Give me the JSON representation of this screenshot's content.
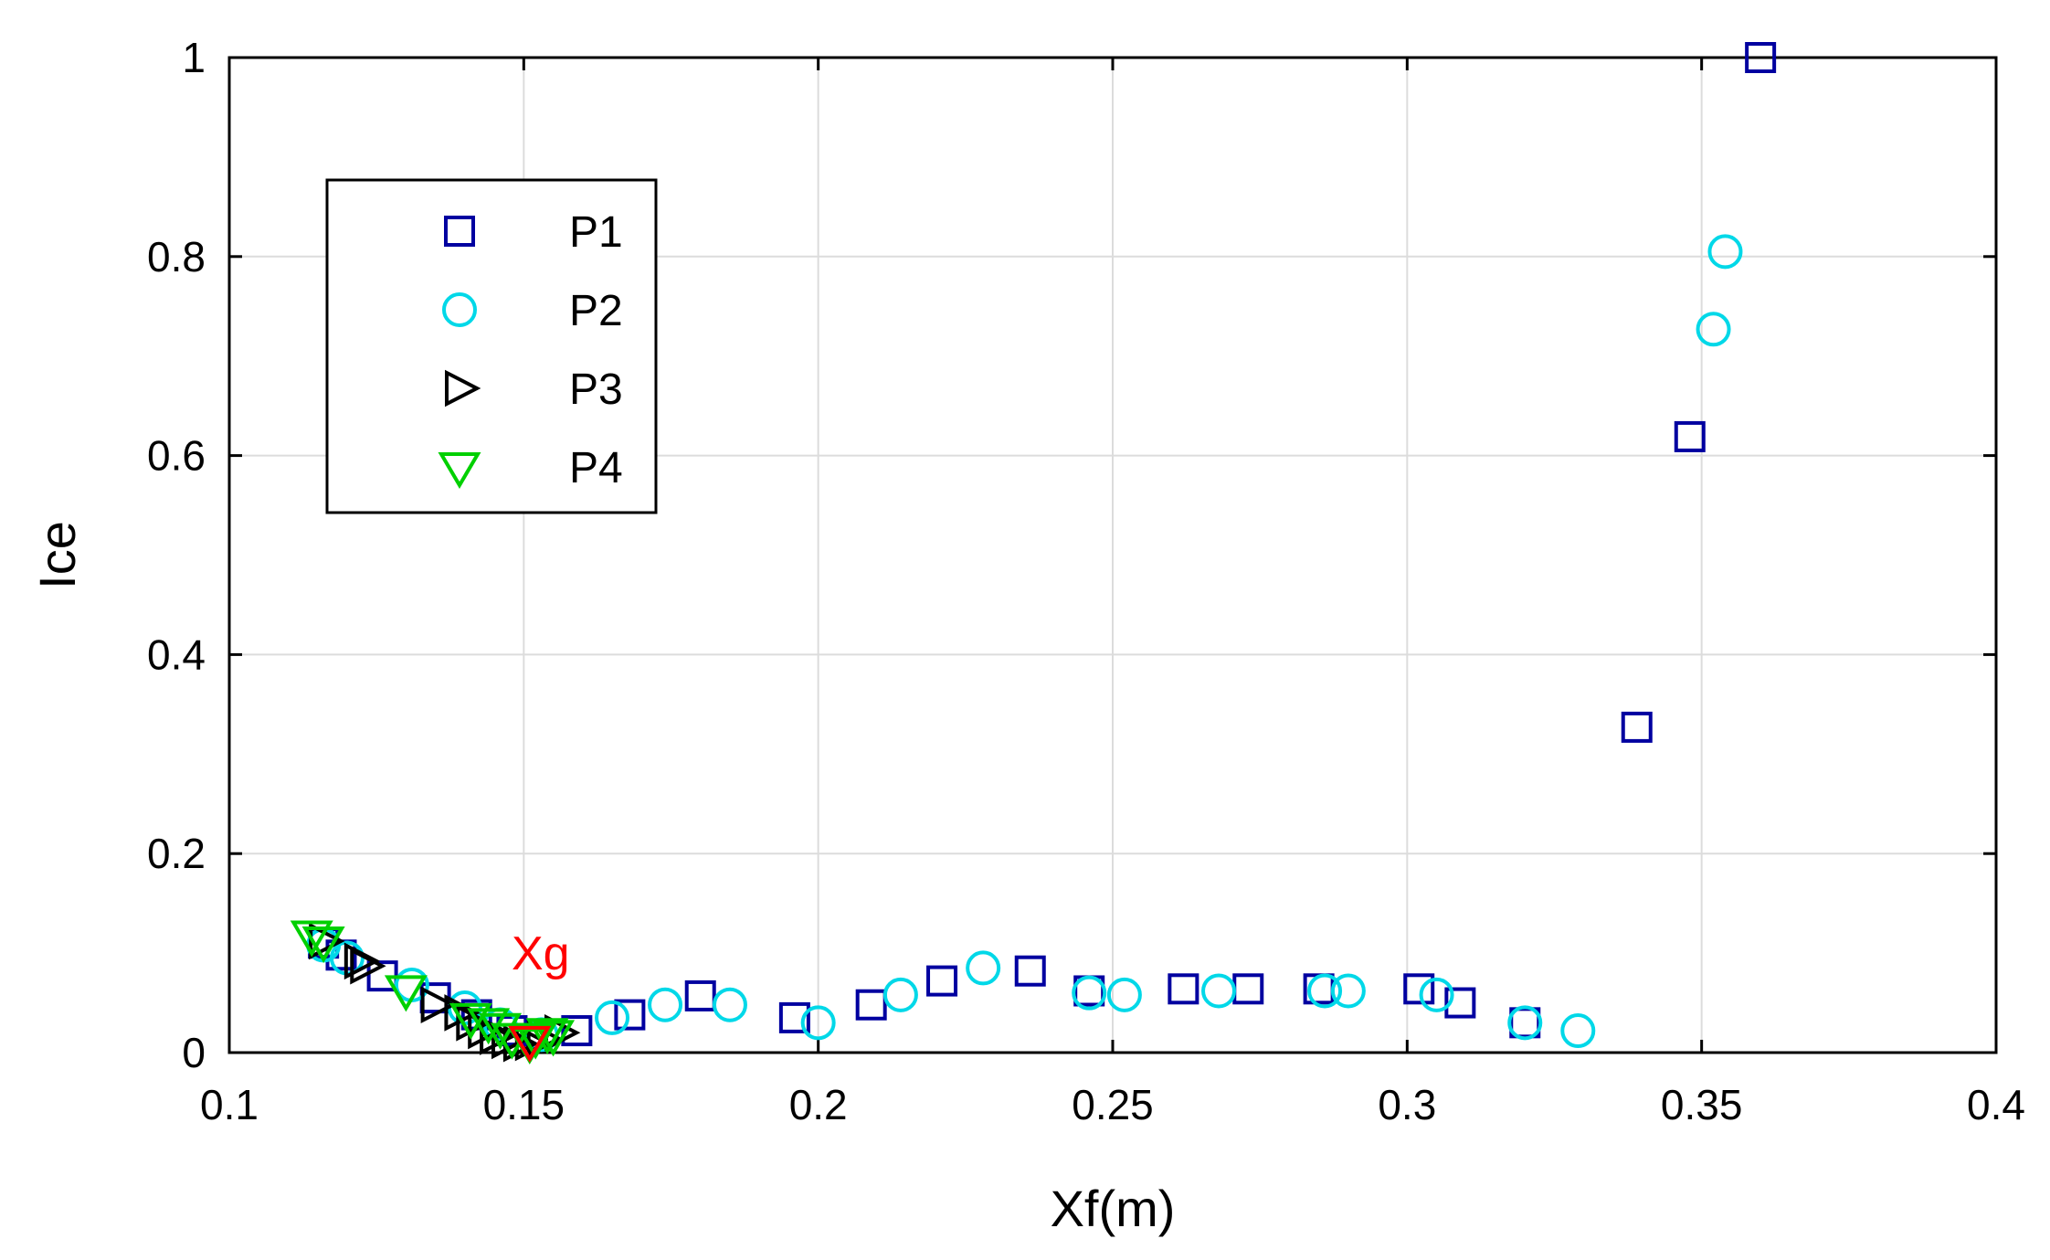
{
  "chart_data": {
    "type": "scatter",
    "xlabel": "Xf(m)",
    "ylabel": "Ice",
    "xlim": [
      0.1,
      0.4
    ],
    "ylim": [
      0,
      1
    ],
    "xticks": [
      0.1,
      0.15,
      0.2,
      0.25,
      0.3,
      0.35,
      0.4
    ],
    "yticks": [
      0,
      0.2,
      0.4,
      0.6,
      0.8,
      1
    ],
    "xtick_labels": [
      "0.1",
      "0.15",
      "0.2",
      "0.25",
      "0.3",
      "0.35",
      "0.4"
    ],
    "ytick_labels": [
      "0",
      "0.2",
      "0.4",
      "0.6",
      "0.8",
      "1"
    ],
    "grid": true,
    "legend_position": "upper-left",
    "series": [
      {
        "name": "P1",
        "marker": "square",
        "color": "#0000a0",
        "points": [
          [
            0.116,
            0.11
          ],
          [
            0.119,
            0.098
          ],
          [
            0.126,
            0.077
          ],
          [
            0.135,
            0.055
          ],
          [
            0.142,
            0.038
          ],
          [
            0.148,
            0.022
          ],
          [
            0.159,
            0.022
          ],
          [
            0.168,
            0.038
          ],
          [
            0.18,
            0.057
          ],
          [
            0.196,
            0.035
          ],
          [
            0.209,
            0.048
          ],
          [
            0.221,
            0.072
          ],
          [
            0.236,
            0.082
          ],
          [
            0.246,
            0.062
          ],
          [
            0.262,
            0.064
          ],
          [
            0.273,
            0.064
          ],
          [
            0.285,
            0.064
          ],
          [
            0.302,
            0.064
          ],
          [
            0.309,
            0.05
          ],
          [
            0.32,
            0.03
          ],
          [
            0.339,
            0.327
          ],
          [
            0.348,
            0.619
          ],
          [
            0.36,
            1.0
          ]
        ]
      },
      {
        "name": "P2",
        "marker": "circle",
        "color": "#00d8e8",
        "points": [
          [
            0.116,
            0.108
          ],
          [
            0.12,
            0.095
          ],
          [
            0.131,
            0.068
          ],
          [
            0.14,
            0.045
          ],
          [
            0.146,
            0.028
          ],
          [
            0.153,
            0.018
          ],
          [
            0.165,
            0.035
          ],
          [
            0.174,
            0.048
          ],
          [
            0.185,
            0.048
          ],
          [
            0.2,
            0.03
          ],
          [
            0.214,
            0.058
          ],
          [
            0.228,
            0.085
          ],
          [
            0.246,
            0.06
          ],
          [
            0.252,
            0.058
          ],
          [
            0.268,
            0.062
          ],
          [
            0.286,
            0.062
          ],
          [
            0.29,
            0.062
          ],
          [
            0.305,
            0.058
          ],
          [
            0.32,
            0.03
          ],
          [
            0.329,
            0.022
          ],
          [
            0.352,
            0.727
          ],
          [
            0.354,
            0.805
          ]
        ]
      },
      {
        "name": "P3",
        "marker": "triangle-right",
        "color": "#000000",
        "points": [
          [
            0.116,
            0.112
          ],
          [
            0.122,
            0.092
          ],
          [
            0.123,
            0.087
          ],
          [
            0.135,
            0.048
          ],
          [
            0.139,
            0.04
          ],
          [
            0.141,
            0.03
          ],
          [
            0.143,
            0.022
          ],
          [
            0.145,
            0.016
          ],
          [
            0.147,
            0.012
          ],
          [
            0.149,
            0.009
          ],
          [
            0.151,
            0.01
          ],
          [
            0.153,
            0.014
          ],
          [
            0.156,
            0.02
          ]
        ]
      },
      {
        "name": "P4",
        "marker": "triangle-down",
        "color": "#00d000",
        "points": [
          [
            0.114,
            0.118
          ],
          [
            0.116,
            0.112
          ],
          [
            0.13,
            0.063
          ],
          [
            0.141,
            0.035
          ],
          [
            0.144,
            0.03
          ],
          [
            0.146,
            0.025
          ],
          [
            0.148,
            0.015
          ],
          [
            0.151,
            0.01
          ],
          [
            0.152,
            0.015
          ],
          [
            0.154,
            0.02
          ],
          [
            0.155,
            0.018
          ]
        ]
      }
    ],
    "annotations": [
      {
        "text": "Xg",
        "x": 0.151,
        "y": 0.1,
        "color": "#ff0000"
      },
      {
        "marker": "triangle-down",
        "x": 0.151,
        "y": 0.012,
        "color": "#ff0000"
      }
    ]
  }
}
